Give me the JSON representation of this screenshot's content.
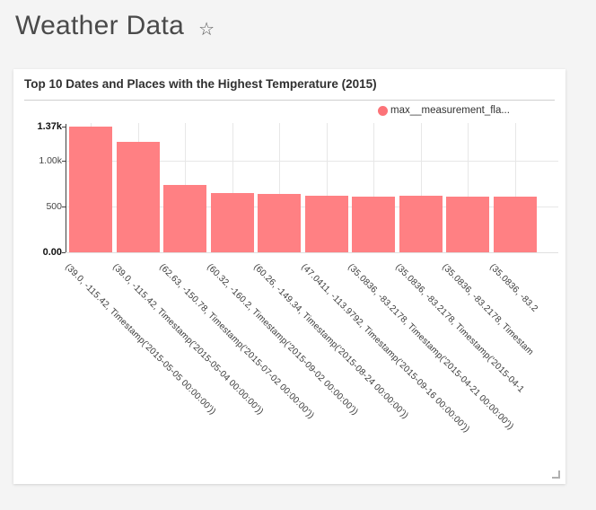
{
  "page": {
    "title": "Weather Data",
    "star_icon": "☆",
    "background_color": "#f4f4f4"
  },
  "card": {
    "title": "Top 10 Dates and Places with the Highest Temperature (2015)",
    "legend": {
      "label": "max__measurement_fla...",
      "color": "#fc7378"
    }
  },
  "chart_data": {
    "type": "bar",
    "title": "Top 10 Dates and Places with the Highest Temperature (2015)",
    "series": [
      {
        "name": "max__measurement_fla...",
        "color": "#ff8083",
        "values": [
          1370,
          1207,
          731,
          645,
          640,
          612,
          610,
          612,
          610,
          605
        ]
      }
    ],
    "categories": [
      "(39.0, -115.42, Timestamp('2015-05-05 00:00:00'))",
      "(39.0, -115.42, Timestamp('2015-05-04 00:00:00'))",
      "(62.63, -150.78, Timestamp('2015-07-02 00:00:00'))",
      "(60.32, -160.2, Timestamp('2015-09-02 00:00:00'))",
      "(60.26, -149.34, Timestamp('2015-08-24 00:00:00'))",
      "(47.0411, -113.9792, Timestamp('2015-09-16 00:00:00'))",
      "(35.0836, -83.2178, Timestamp('2015-04-21 00:00:00'))",
      "(35.0836, -83.2178, Timestamp('2015-04-1",
      "(35.0836, -83.2178, Timestam",
      "(35.0836, -83.2"
    ],
    "xlabel": "",
    "ylabel": "",
    "ylim": [
      0,
      1370
    ],
    "yticks": [
      {
        "label": "1.37k",
        "value": 1370,
        "bold": true
      },
      {
        "label": "1.00k",
        "value": 1000,
        "bold": false
      },
      {
        "label": "500",
        "value": 500,
        "bold": false
      },
      {
        "label": "0.00",
        "value": 0,
        "bold": true
      }
    ],
    "grid": true,
    "legend_position": "top-right",
    "tick_angle_deg": 45
  }
}
